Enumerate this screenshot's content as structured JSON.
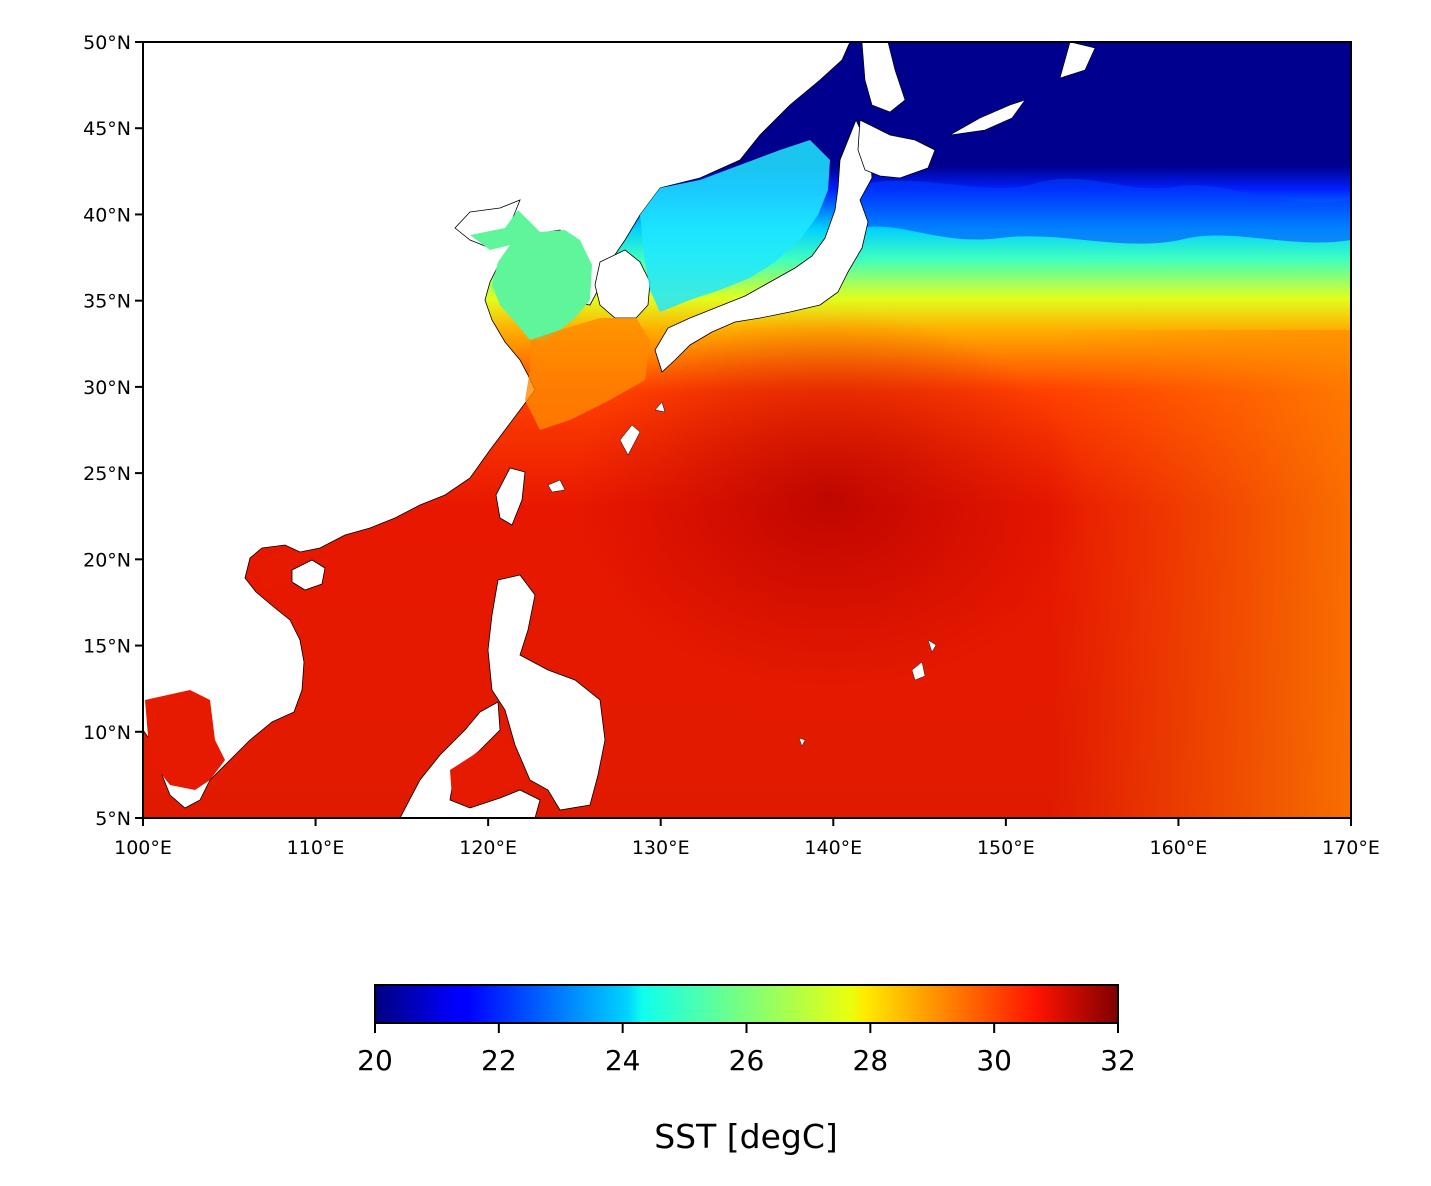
{
  "chart_data": {
    "type": "heatmap",
    "variable": "SST",
    "colorbar": {
      "label": "SST [degC]",
      "range": [
        20,
        32
      ],
      "ticks": [
        "20",
        "22",
        "24",
        "26",
        "28",
        "30",
        "32"
      ],
      "colormap": "jet",
      "orientation": "horizontal",
      "placement": "bottom"
    },
    "x_axis": {
      "range": [
        100,
        170
      ],
      "units": "degrees east",
      "ticks": [
        "100°E",
        "110°E",
        "120°E",
        "130°E",
        "140°E",
        "150°E",
        "160°E",
        "170°E"
      ]
    },
    "y_axis": {
      "range": [
        5,
        50
      ],
      "units": "degrees north",
      "ticks": [
        "5°N",
        "10°N",
        "15°N",
        "20°N",
        "25°N",
        "30°N",
        "35°N",
        "40°N",
        "45°N",
        "50°N"
      ]
    },
    "grid": false,
    "colors": {
      "land": "#ffffff",
      "coastline": "#000000",
      "cold": "#00008f",
      "warm": "#d81000"
    }
  }
}
